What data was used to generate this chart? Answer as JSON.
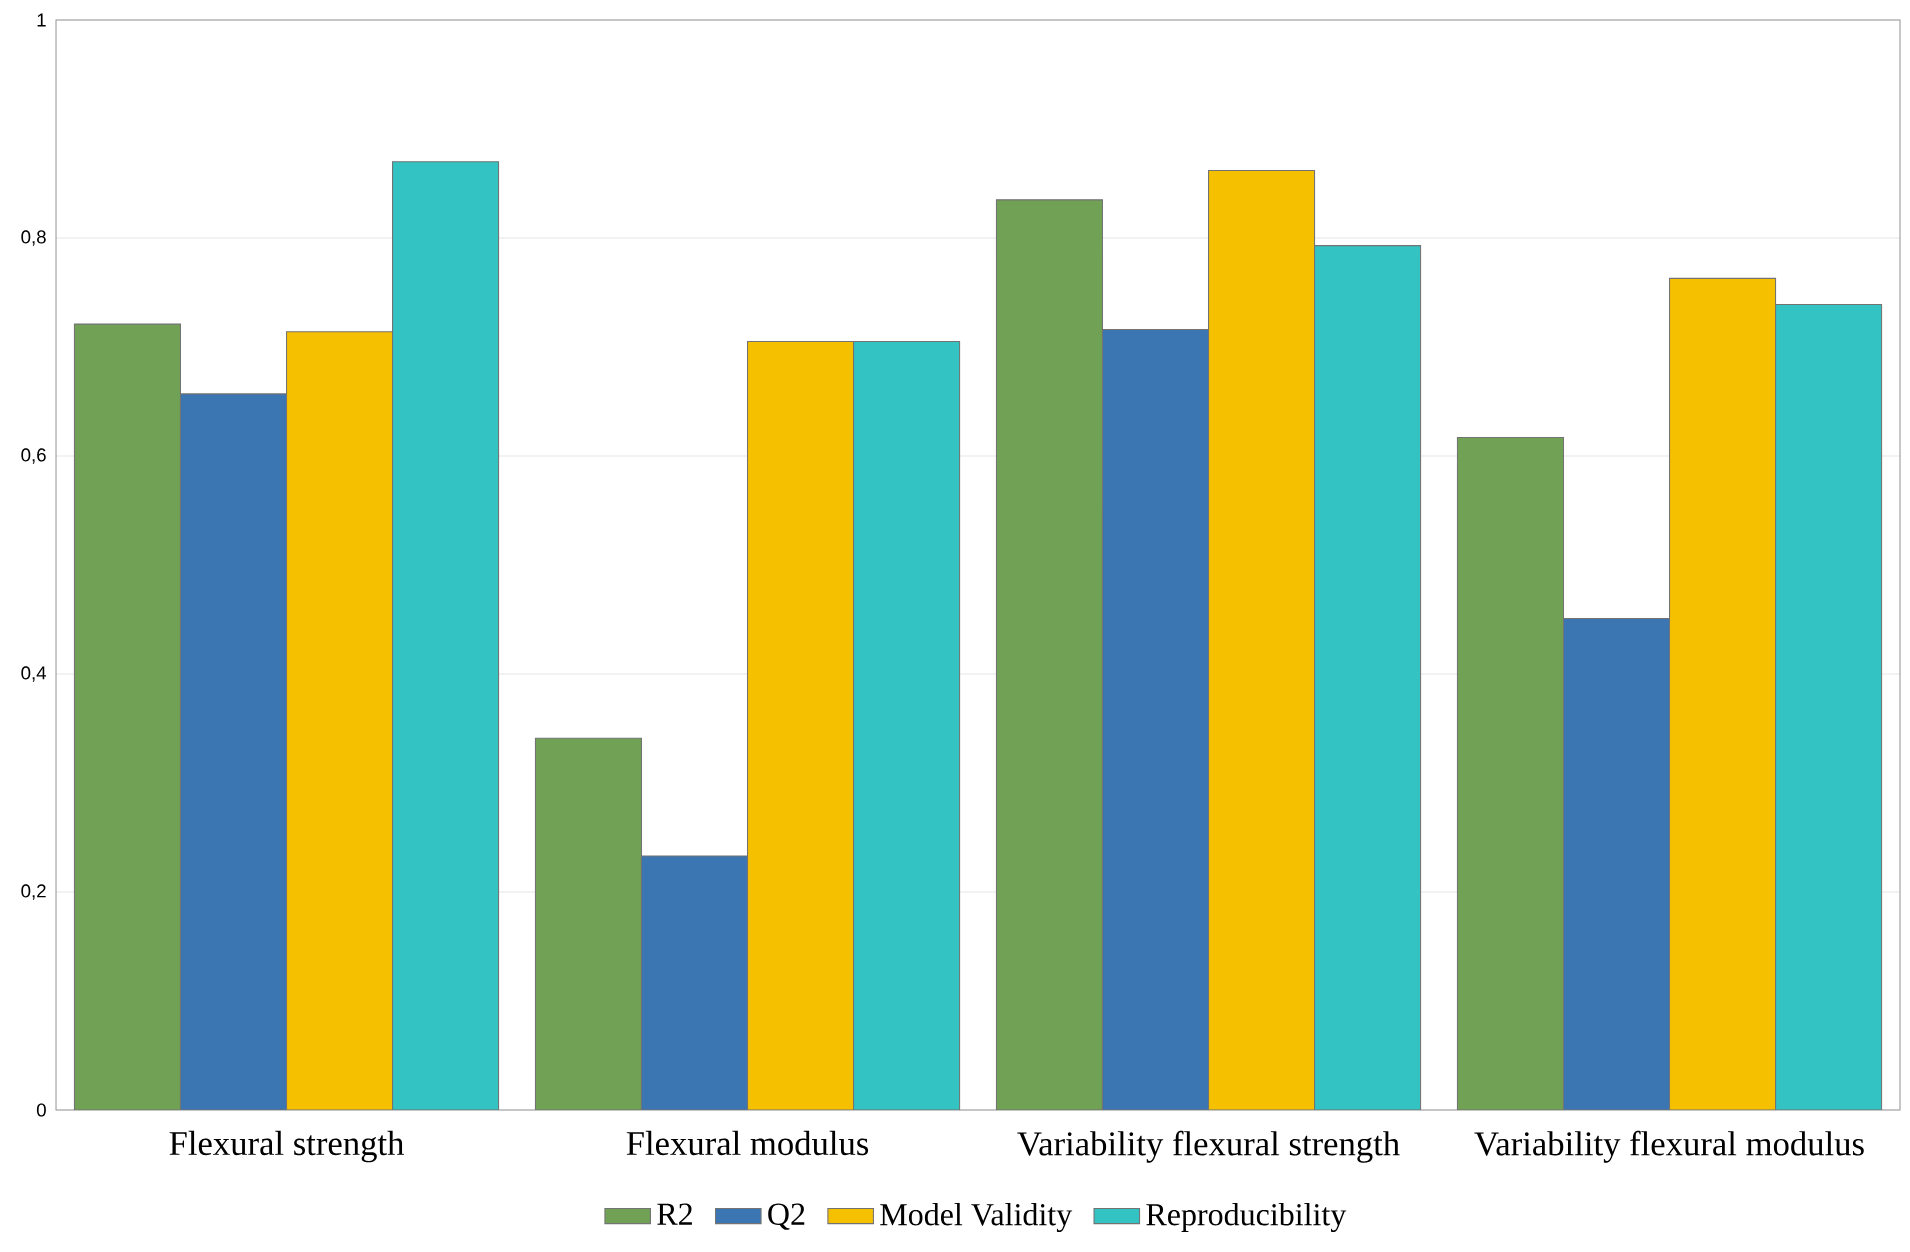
{
  "chart_data": {
    "type": "bar",
    "categories": [
      "Flexural strength",
      "Flexural modulus",
      "Variability flexural strength",
      "Variability flexural modulus"
    ],
    "series": [
      {
        "name": "R2",
        "color": "#70a155",
        "values": [
          0.721,
          0.341,
          0.835,
          0.617
        ]
      },
      {
        "name": "Q2",
        "color": "#3b76b2",
        "values": [
          0.657,
          0.233,
          0.716,
          0.451
        ]
      },
      {
        "name": "Model Validity",
        "color": "#f5c000",
        "values": [
          0.714,
          0.705,
          0.862,
          0.763
        ]
      },
      {
        "name": "Reproducibility",
        "color": "#33c3c3",
        "values": [
          0.87,
          0.705,
          0.793,
          0.739
        ]
      }
    ],
    "ylim": [
      0,
      1
    ],
    "yticks": [
      0,
      {
        "value": 0.2,
        "label": "0,2"
      },
      {
        "value": 0.4,
        "label": "0,4"
      },
      {
        "value": 0.6,
        "label": "0,6"
      },
      {
        "value": 0.8,
        "label": "0,8"
      },
      1
    ],
    "grid": "y",
    "legend": "bottom"
  }
}
